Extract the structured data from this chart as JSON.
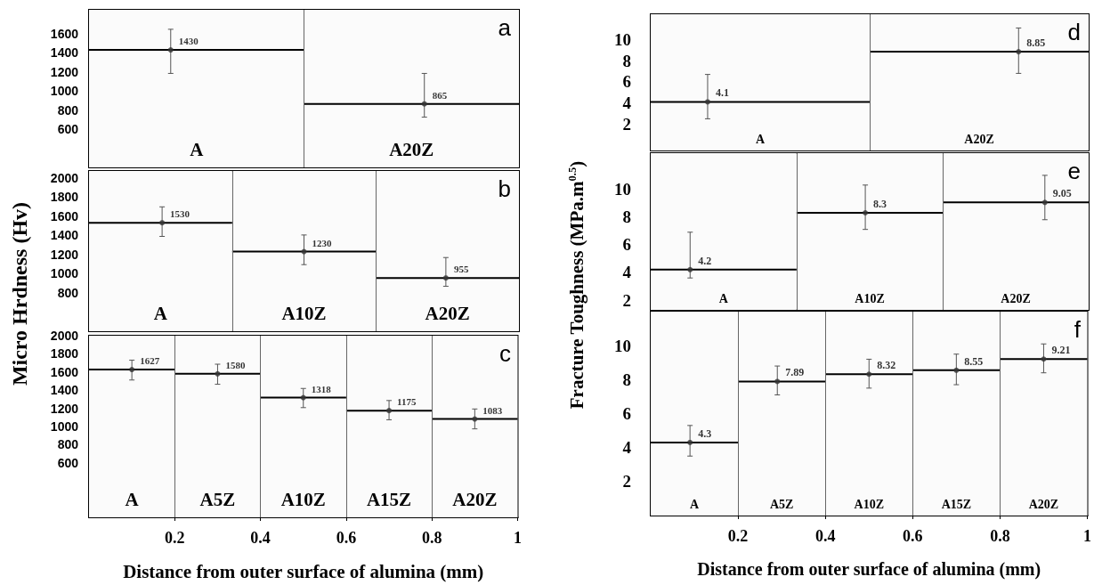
{
  "chart_data": [
    {
      "type": "scatter",
      "title": "a",
      "xlim": [
        0,
        1
      ],
      "ylim": [
        200,
        1850
      ],
      "yticks": [
        600,
        800,
        1000,
        1200,
        1400,
        1600
      ],
      "tick_labels": "y",
      "series": [
        {
          "type": "line",
          "x": [
            0,
            0.5
          ],
          "values": [
            1430,
            1430
          ]
        },
        {
          "type": "line",
          "x": [
            0.5,
            1
          ],
          "values": [
            865,
            865
          ]
        },
        {
          "marker": "circle",
          "x": [
            0.19,
            0.78
          ],
          "values": [
            1430,
            865
          ],
          "errors": [
            [
              1184,
              1646
            ],
            [
              726,
              1184
            ]
          ],
          "value_labels": [
            "1430",
            "865"
          ]
        }
      ],
      "ref_lines": [
        {
          "axis": "x",
          "value": 0.5
        }
      ],
      "bands": [
        {
          "axis": "x",
          "from": 0,
          "to": 0.5,
          "label": "A",
          "color": "#fbfbfb"
        },
        {
          "axis": "x",
          "from": 0.5,
          "to": 1,
          "label": "A20Z",
          "color": "#fbfbfb"
        }
      ]
    },
    {
      "type": "scatter",
      "title": "b",
      "ylabel": "Micro Hrdness (Hv)",
      "xlim": [
        0,
        1
      ],
      "ylim": [
        400,
        2070
      ],
      "yticks": [
        800,
        1000,
        1200,
        1400,
        1600,
        1800,
        2000
      ],
      "tick_labels": "y",
      "series": [
        {
          "type": "line",
          "x": [
            0,
            0.333
          ],
          "values": [
            1530,
            1530
          ]
        },
        {
          "type": "line",
          "x": [
            0.333,
            0.667
          ],
          "values": [
            1230,
            1230
          ]
        },
        {
          "type": "line",
          "x": [
            0.667,
            1
          ],
          "values": [
            955,
            955
          ]
        },
        {
          "marker": "circle",
          "x": [
            0.17,
            0.5,
            0.83
          ],
          "values": [
            1530,
            1230,
            955
          ],
          "errors": [
            [
              1388,
              1696
            ],
            [
              1094,
              1403
            ],
            [
              868,
              1168
            ]
          ],
          "value_labels": [
            "1530",
            "1230",
            "955"
          ]
        }
      ],
      "ref_lines": [
        {
          "axis": "x",
          "value": 0.333
        },
        {
          "axis": "x",
          "value": 0.667
        }
      ],
      "bands": [
        {
          "axis": "x",
          "from": 0,
          "to": 0.333,
          "label": "A",
          "color": "#fbfbfb"
        },
        {
          "axis": "x",
          "from": 0.333,
          "to": 0.667,
          "label": "A10Z",
          "color": "#fbfbfb"
        },
        {
          "axis": "x",
          "from": 0.667,
          "to": 1,
          "label": "A20Z",
          "color": "#fbfbfb"
        }
      ]
    },
    {
      "type": "scatter",
      "title": "c",
      "xlabel": "Distance from outer surface of alumina (mm)",
      "xlim": [
        0,
        1
      ],
      "xticks": [
        0.2,
        0.4,
        0.6,
        0.8,
        1
      ],
      "ylim": [
        0,
        2000
      ],
      "yticks": [
        600,
        800,
        1000,
        1200,
        1400,
        1600,
        1800,
        2000
      ],
      "series": [
        {
          "type": "line",
          "x": [
            0,
            0.2
          ],
          "values": [
            1627,
            1627
          ]
        },
        {
          "type": "line",
          "x": [
            0.2,
            0.4
          ],
          "values": [
            1580,
            1580
          ]
        },
        {
          "type": "line",
          "x": [
            0.4,
            0.6
          ],
          "values": [
            1318,
            1318
          ]
        },
        {
          "type": "line",
          "x": [
            0.6,
            0.8
          ],
          "values": [
            1175,
            1175
          ]
        },
        {
          "type": "line",
          "x": [
            0.8,
            1
          ],
          "values": [
            1083,
            1083
          ]
        },
        {
          "marker": "circle",
          "x": [
            0.1,
            0.3,
            0.5,
            0.7,
            0.9
          ],
          "values": [
            1627,
            1580,
            1318,
            1175,
            1083
          ],
          "errors": [
            [
              1512,
              1731
            ],
            [
              1465,
              1686
            ],
            [
              1208,
              1419
            ],
            [
              1074,
              1286
            ],
            [
              974,
              1193
            ]
          ],
          "value_labels": [
            "1627",
            "1580",
            "1318",
            "1175",
            "1083"
          ]
        }
      ],
      "ref_lines": [
        {
          "axis": "x",
          "value": 0.2
        },
        {
          "axis": "x",
          "value": 0.4
        },
        {
          "axis": "x",
          "value": 0.6
        },
        {
          "axis": "x",
          "value": 0.8
        }
      ],
      "bands": [
        {
          "axis": "x",
          "from": 0,
          "to": 0.2,
          "label": "A",
          "color": "#fbfbfb"
        },
        {
          "axis": "x",
          "from": 0.2,
          "to": 0.4,
          "label": "A5Z",
          "color": "#fbfbfb"
        },
        {
          "axis": "x",
          "from": 0.4,
          "to": 0.6,
          "label": "A10Z",
          "color": "#fbfbfb"
        },
        {
          "axis": "x",
          "from": 0.6,
          "to": 0.8,
          "label": "A15Z",
          "color": "#fbfbfb"
        },
        {
          "axis": "x",
          "from": 0.8,
          "to": 1,
          "label": "A20Z",
          "color": "#fbfbfb"
        }
      ]
    },
    {
      "type": "scatter",
      "title": "d",
      "xlim": [
        0,
        1
      ],
      "ylim": [
        -0.5,
        12.4
      ],
      "yticks": [
        2,
        4,
        6,
        8,
        10
      ],
      "tick_labels": "y",
      "series": [
        {
          "type": "line",
          "x": [
            0,
            0.5
          ],
          "values": [
            4.1,
            4.1
          ]
        },
        {
          "type": "line",
          "x": [
            0.5,
            1
          ],
          "values": [
            8.85,
            8.85
          ]
        },
        {
          "marker": "circle",
          "x": [
            0.13,
            0.84
          ],
          "values": [
            4.1,
            8.85
          ],
          "errors": [
            [
              2.5,
              6.7
            ],
            [
              6.8,
              11.1
            ]
          ],
          "value_labels": [
            "4.1",
            "8.85"
          ]
        }
      ],
      "ref_lines": [
        {
          "axis": "x",
          "value": 0.5
        }
      ],
      "bands": [
        {
          "axis": "x",
          "from": 0,
          "to": 0.5,
          "label": "A",
          "color": "#fbfbfb"
        },
        {
          "axis": "x",
          "from": 0.5,
          "to": 1,
          "label": "A20Z",
          "color": "#fbfbfb"
        }
      ]
    },
    {
      "type": "scatter",
      "title": "e",
      "ylabel": "Fracture Toughness (MPa.m$^{0.5}$)",
      "xlim": [
        0,
        1
      ],
      "ylim": [
        1.3,
        12.6
      ],
      "yticks": [
        2,
        4,
        6,
        8,
        10
      ],
      "tick_labels": "y",
      "series": [
        {
          "type": "line",
          "x": [
            0,
            0.333
          ],
          "values": [
            4.2,
            4.2
          ]
        },
        {
          "type": "line",
          "x": [
            0.333,
            0.667
          ],
          "values": [
            8.3,
            8.3
          ]
        },
        {
          "type": "line",
          "x": [
            0.667,
            1
          ],
          "values": [
            9.05,
            9.05
          ]
        },
        {
          "marker": "circle",
          "x": [
            0.09,
            0.49,
            0.9
          ],
          "values": [
            4.2,
            8.3,
            9.05
          ],
          "errors": [
            [
              3.6,
              6.9
            ],
            [
              7.1,
              10.3
            ],
            [
              7.8,
              11
            ]
          ],
          "value_labels": [
            "4.2",
            "8.3",
            "9.05"
          ]
        }
      ],
      "ref_lines": [
        {
          "axis": "x",
          "value": 0.333
        },
        {
          "axis": "x",
          "value": 0.667
        }
      ],
      "bands": [
        {
          "axis": "x",
          "from": 0,
          "to": 0.333,
          "label": "A",
          "color": "#fbfbfb"
        },
        {
          "axis": "x",
          "from": 0.333,
          "to": 0.667,
          "label": "A10Z",
          "color": "#fbfbfb"
        },
        {
          "axis": "x",
          "from": 0.667,
          "to": 1,
          "label": "A20Z",
          "color": "#fbfbfb"
        }
      ]
    },
    {
      "type": "scatter",
      "title": "f",
      "xlabel": "Distance from outer surface of alumina (mm)",
      "xlim": [
        0,
        1
      ],
      "xticks": [
        0.2,
        0.4,
        0.6,
        0.8,
        1
      ],
      "ylim": [
        0,
        12
      ],
      "yticks": [
        2,
        4,
        6,
        8,
        10
      ],
      "series": [
        {
          "type": "line",
          "x": [
            0,
            0.2
          ],
          "values": [
            4.3,
            4.3
          ]
        },
        {
          "type": "line",
          "x": [
            0.2,
            0.4
          ],
          "values": [
            7.89,
            7.89
          ]
        },
        {
          "type": "line",
          "x": [
            0.4,
            0.6
          ],
          "values": [
            8.32,
            8.32
          ]
        },
        {
          "type": "line",
          "x": [
            0.6,
            0.8
          ],
          "values": [
            8.55,
            8.55
          ]
        },
        {
          "type": "line",
          "x": [
            0.8,
            1
          ],
          "values": [
            9.21,
            9.21
          ]
        },
        {
          "marker": "circle",
          "x": [
            0.09,
            0.29,
            0.5,
            0.7,
            0.9
          ],
          "values": [
            4.3,
            7.89,
            8.32,
            8.55,
            9.21
          ],
          "errors": [
            [
              3.5,
              5.3
            ],
            [
              7.1,
              8.8
            ],
            [
              7.5,
              9.2
            ],
            [
              7.7,
              9.5
            ],
            [
              8.4,
              10.1
            ]
          ],
          "value_labels": [
            "4.3",
            "7.89",
            "8.32",
            "8.55",
            "9.21"
          ]
        }
      ],
      "ref_lines": [
        {
          "axis": "x",
          "value": 0.2
        },
        {
          "axis": "x",
          "value": 0.4
        },
        {
          "axis": "x",
          "value": 0.6
        },
        {
          "axis": "x",
          "value": 0.8
        }
      ],
      "bands": [
        {
          "axis": "x",
          "from": 0,
          "to": 0.2,
          "label": "A",
          "color": "#fbfbfb"
        },
        {
          "axis": "x",
          "from": 0.2,
          "to": 0.4,
          "label": "A5Z",
          "color": "#fbfbfb"
        },
        {
          "axis": "x",
          "from": 0.4,
          "to": 0.6,
          "label": "A10Z",
          "color": "#fbfbfb"
        },
        {
          "axis": "x",
          "from": 0.6,
          "to": 0.8,
          "label": "A15Z",
          "color": "#fbfbfb"
        },
        {
          "axis": "x",
          "from": 0.8,
          "to": 1,
          "label": "A20Z",
          "color": "#fbfbfb"
        }
      ]
    }
  ]
}
